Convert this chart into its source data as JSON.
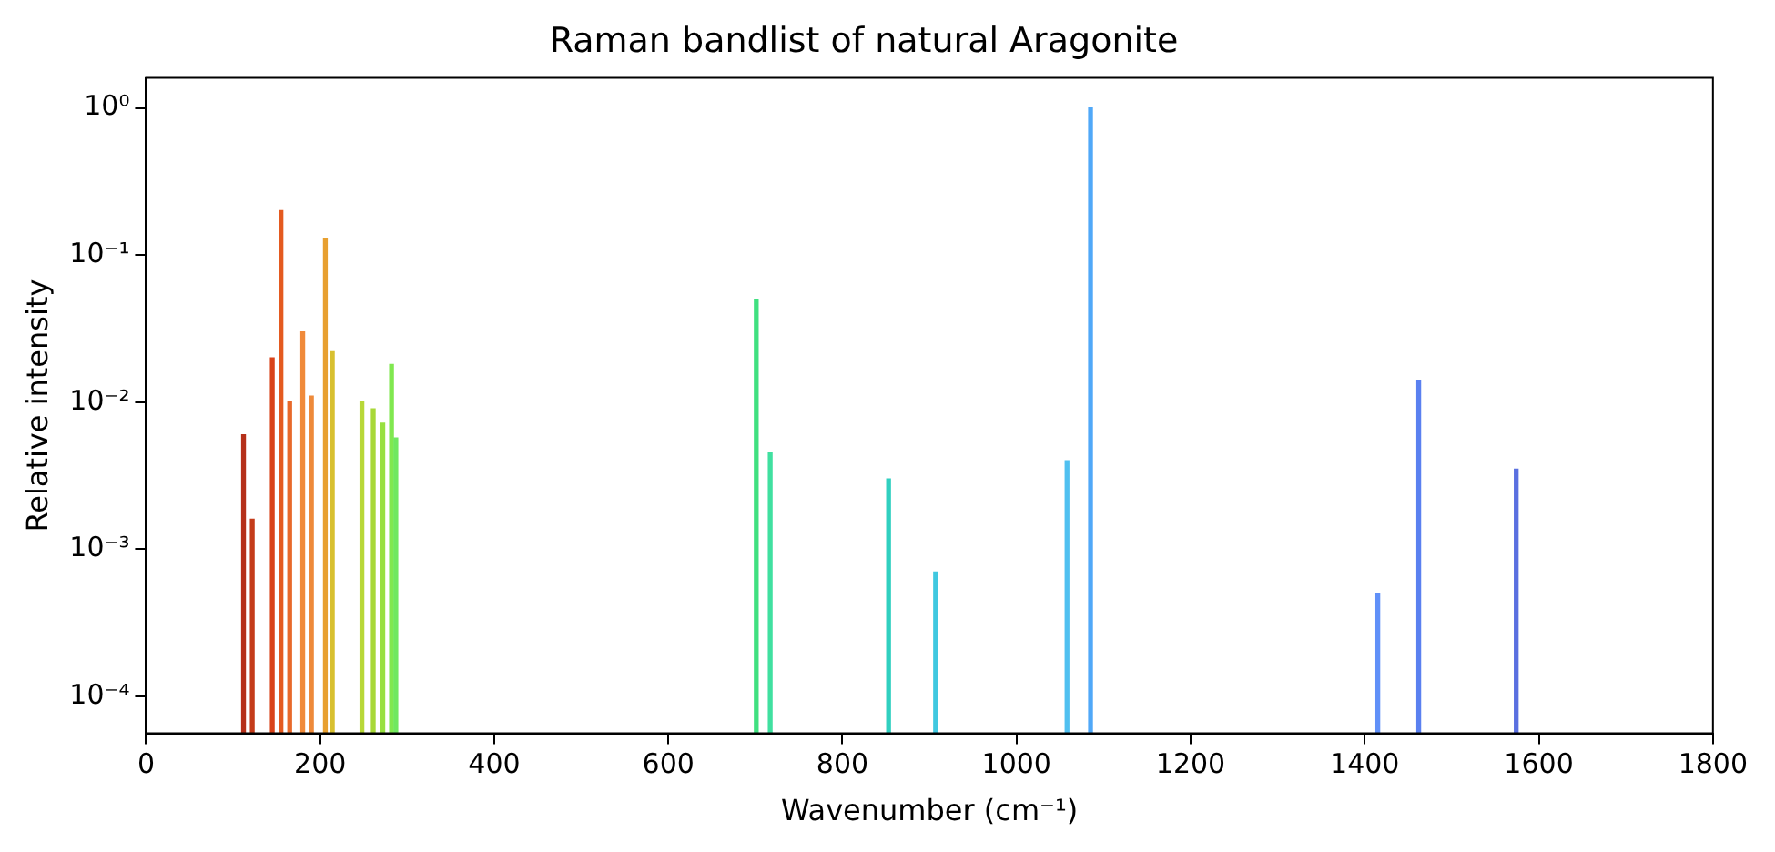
{
  "chart_data": {
    "type": "bar",
    "title": "Raman bandlist of natural Aragonite",
    "xlabel": "Wavenumber (cm⁻¹)",
    "ylabel": "Relative intensity",
    "x": [
      112,
      122,
      145,
      155,
      165,
      180,
      190,
      206,
      214,
      248,
      261,
      272,
      282,
      287,
      701,
      717,
      853,
      907,
      1058,
      1085,
      1415,
      1462,
      1574
    ],
    "values": [
      0.006,
      0.0016,
      0.02,
      0.2,
      0.01,
      0.03,
      0.011,
      0.13,
      0.022,
      0.01,
      0.009,
      0.0072,
      0.018,
      0.0057,
      0.05,
      0.0045,
      0.003,
      0.0007,
      0.004,
      1.0,
      0.0005,
      0.014,
      0.0035
    ],
    "colors": [
      "#b5301a",
      "#c43c1a",
      "#d9431a",
      "#e45a20",
      "#e8692a",
      "#f08a3a",
      "#ee8a3a",
      "#e8a030",
      "#d8c030",
      "#b8d838",
      "#a8d838",
      "#98e040",
      "#80e850",
      "#70e860",
      "#40e080",
      "#40e0a0",
      "#30d0c0",
      "#40c8e0",
      "#50c0f0",
      "#50a8f8",
      "#6090f8",
      "#5a80f0",
      "#5a70e0"
    ],
    "log": "y",
    "xlim": [
      0,
      1800
    ],
    "xticks": [
      0,
      200,
      400,
      600,
      800,
      1000,
      1200,
      1400,
      1600,
      1800
    ],
    "ylim": [
      5.6e-05,
      1.6
    ],
    "yticks": [
      {
        "value": 0.0001,
        "label": "10⁻⁴"
      },
      {
        "value": 0.001,
        "label": "10⁻³"
      },
      {
        "value": 0.01,
        "label": "10⁻²"
      },
      {
        "value": 0.1,
        "label": "10⁻¹"
      },
      {
        "value": 1,
        "label": "10⁰"
      }
    ],
    "grid": false,
    "legend": false
  }
}
